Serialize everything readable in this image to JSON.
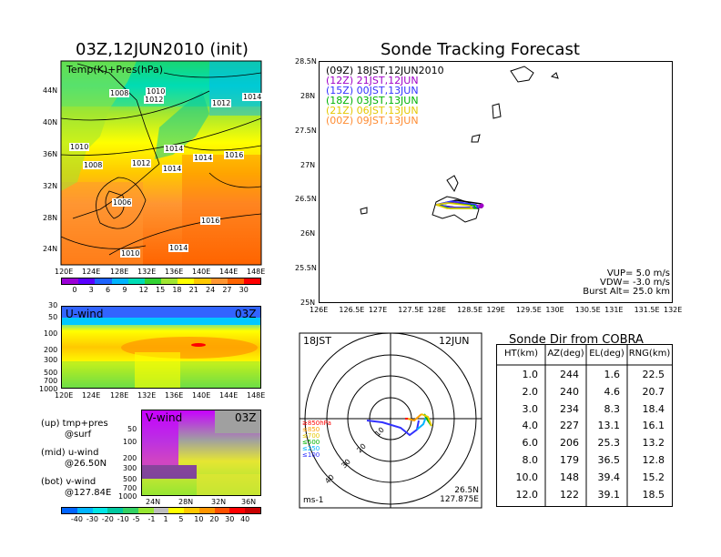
{
  "left_top": {
    "title": "03Z,12JUN2010 (init)",
    "overlay_label": "Temp(K)+Pres(hPa)",
    "x_ticks": [
      "120E",
      "124E",
      "128E",
      "132E",
      "136E",
      "140E",
      "144E",
      "148E"
    ],
    "y_ticks": [
      "44N",
      "40N",
      "36N",
      "32N",
      "28N",
      "24N"
    ],
    "contour_labels": [
      "1008",
      "1010",
      "1012",
      "1014",
      "1012",
      "1014",
      "1010",
      "1008",
      "1012",
      "1014",
      "1014",
      "1016",
      "1006",
      "1016",
      "1010",
      "1014"
    ]
  },
  "temp_colorbar": {
    "values": [
      "0",
      "3",
      "6",
      "9",
      "12",
      "15",
      "18",
      "21",
      "24",
      "27",
      "30"
    ],
    "colors": [
      "#9b00d6",
      "#5a00ff",
      "#1e64ff",
      "#00b4ff",
      "#00dcb4",
      "#32d232",
      "#a0e632",
      "#ffff00",
      "#ffc800",
      "#ff9632",
      "#ff6400",
      "#ff0000"
    ]
  },
  "uwind": {
    "label": "U-wind",
    "time": "03Z",
    "y_ticks": [
      "30",
      "50",
      "100",
      "200",
      "300",
      "500",
      "700",
      "1000"
    ],
    "x_ticks": [
      "120E",
      "124E",
      "128E",
      "132E",
      "136E",
      "140E",
      "144E",
      "148E"
    ]
  },
  "vwind": {
    "label": "V-wind",
    "time": "03Z",
    "y_ticks": [
      "50",
      "100",
      "200",
      "300",
      "500",
      "700",
      "1000"
    ],
    "x_ticks": [
      "24N",
      "28N",
      "32N",
      "36N"
    ]
  },
  "notes": [
    {
      "head": "(up) tmp+pres",
      "sub": "@surf"
    },
    {
      "head": "(mid) u-wind",
      "sub": "@26.50N"
    },
    {
      "head": "(bot) v-wind",
      "sub": "@127.84E"
    }
  ],
  "wind_colorbar": {
    "values": [
      "-40",
      "-30",
      "-20",
      "-10",
      "-5",
      "-1",
      "1",
      "5",
      "10",
      "20",
      "30",
      "40"
    ],
    "colors": [
      "#0064ff",
      "#00b4ff",
      "#00e6e6",
      "#00c8a0",
      "#32d264",
      "#96e632",
      "#bebebe",
      "#ffff00",
      "#ffc800",
      "#ff9600",
      "#ff5000",
      "#ff0000",
      "#c80000"
    ]
  },
  "tracking": {
    "title": "Sonde Tracking Forecast",
    "x_ticks": [
      "126E",
      "126.5E",
      "127E",
      "127.5E",
      "128E",
      "128.5E",
      "129E",
      "129.5E",
      "130E",
      "130.5E",
      "131E",
      "131.5E",
      "132E"
    ],
    "y_ticks": [
      "28.5N",
      "28N",
      "27.5N",
      "27N",
      "26.5N",
      "26N",
      "25.5N",
      "25N"
    ],
    "legend": [
      {
        "code": "(09Z)",
        "time": "18JST,12JUN2010",
        "color": "#000000"
      },
      {
        "code": "(12Z)",
        "time": "21JST,12JUN",
        "color": "#a000c8"
      },
      {
        "code": "(15Z)",
        "time": "00JST,13JUN",
        "color": "#3232ff"
      },
      {
        "code": "(18Z)",
        "time": "03JST,13JUN",
        "color": "#00b400"
      },
      {
        "code": "(21Z)",
        "time": "06JST,13JUN",
        "color": "#e6c800"
      },
      {
        "code": "(00Z)",
        "time": "09JST,13JUN",
        "color": "#ff8c32"
      }
    ],
    "params": [
      "VUP= 5.0 m/s",
      "VDW= -3.0 m/s",
      "Burst Alt= 25.0 km"
    ]
  },
  "polar": {
    "left_label": "18JST",
    "right_label": "12JUN",
    "ring_labels": [
      "10",
      "20",
      "30",
      "40"
    ],
    "levels": [
      {
        "text": "≥850hPa",
        "color": "#ff0000"
      },
      {
        "text": "≤850",
        "color": "#ffa000"
      },
      {
        "text": "≤700",
        "color": "#e6c800"
      },
      {
        "text": "≤500",
        "color": "#00b400"
      },
      {
        "text": "≤250",
        "color": "#00b4ff"
      },
      {
        "text": "≤100",
        "color": "#3232ff"
      }
    ],
    "units": "ms-1",
    "position_lat": "26.5N",
    "position_lon": "127.875E"
  },
  "cobra": {
    "title": "Sonde Dir from COBRA",
    "headers": [
      "HT(km)",
      "AZ(deg)",
      "EL(deg)",
      "RNG(km)"
    ],
    "rows": [
      [
        "1.0",
        "244",
        "1.6",
        "22.5"
      ],
      [
        "2.0",
        "240",
        "4.6",
        "20.7"
      ],
      [
        "3.0",
        "234",
        "8.3",
        "18.4"
      ],
      [
        "4.0",
        "227",
        "13.1",
        "16.1"
      ],
      [
        "6.0",
        "206",
        "25.3",
        "13.2"
      ],
      [
        "8.0",
        "179",
        "36.5",
        "12.8"
      ],
      [
        "10.0",
        "148",
        "39.4",
        "15.2"
      ],
      [
        "12.0",
        "122",
        "39.1",
        "18.5"
      ]
    ]
  },
  "chart_data": [
    {
      "type": "heatmap",
      "title": "03Z,12JUN2010 (init)",
      "xlabel": "",
      "ylabel": "",
      "xlim": [
        "120E",
        "149E"
      ],
      "ylim": [
        "22N",
        "47N"
      ]
    },
    {
      "type": "heatmap",
      "title": "U-wind",
      "ylim": [
        1000,
        30
      ]
    },
    {
      "type": "heatmap",
      "title": "V-wind",
      "ylim": [
        1000,
        30
      ]
    },
    {
      "type": "line",
      "title": "Sonde Tracking Forecast",
      "xlim": [
        126,
        132
      ],
      "ylim": [
        25,
        28.5
      ]
    },
    {
      "type": "table",
      "title": "Sonde Dir from COBRA"
    }
  ]
}
